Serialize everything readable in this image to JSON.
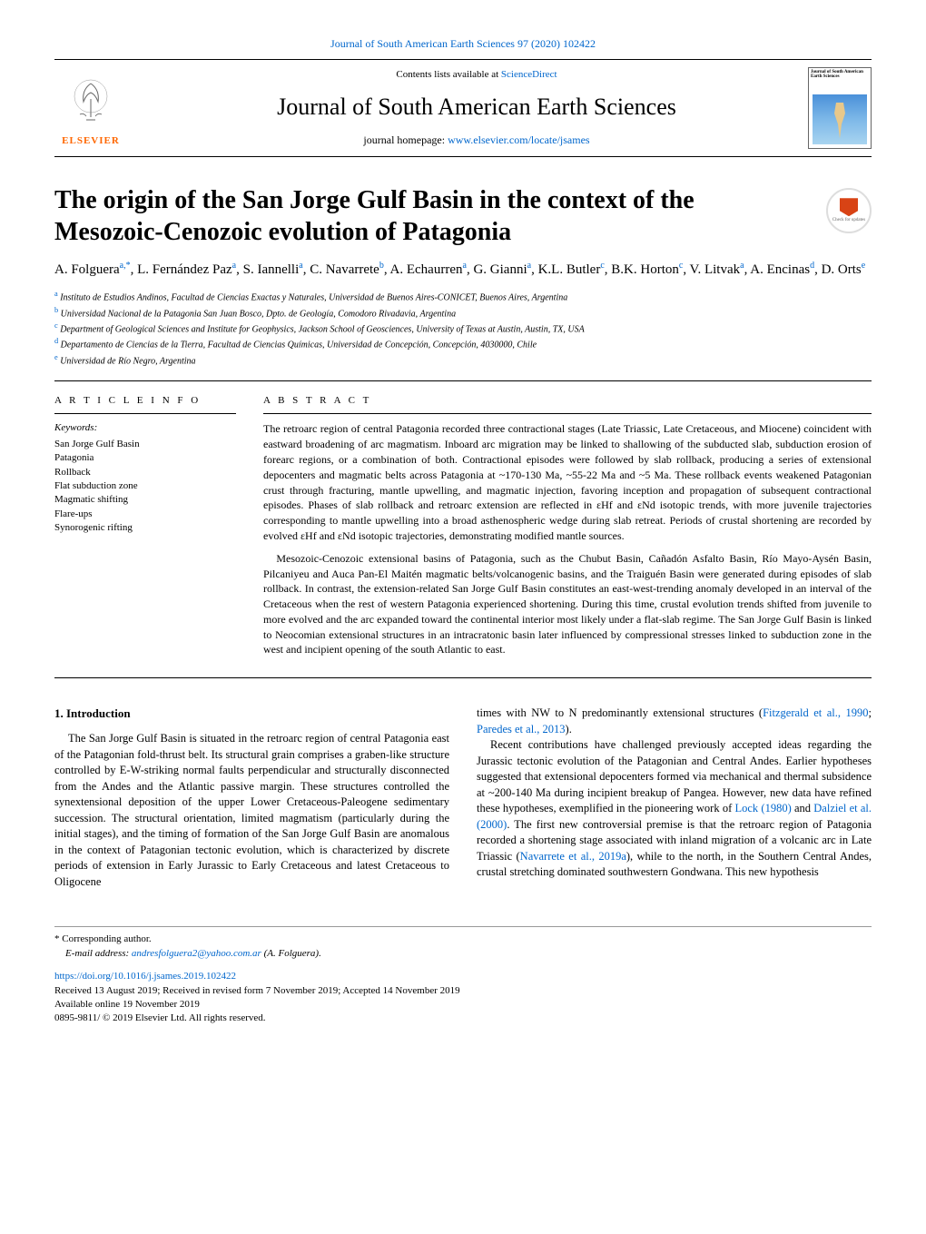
{
  "top_link": {
    "journal_citation": "Journal of South American Earth Sciences 97 (2020) 102422"
  },
  "header": {
    "contents_prefix": "Contents lists available at ",
    "contents_link": "ScienceDirect",
    "journal_name": "Journal of South American Earth Sciences",
    "homepage_prefix": "journal homepage: ",
    "homepage_url": "www.elsevier.com/locate/jsames",
    "elsevier_text": "ELSEVIER",
    "cover_title": "Journal of South American Earth Sciences"
  },
  "check_updates": {
    "label": "Check for updates"
  },
  "article": {
    "title": "The origin of the San Jorge Gulf Basin in the context of the Mesozoic-Cenozoic evolution of Patagonia",
    "authors_html": "A. Folguera<sup>a,*</sup>, L. Fernández Paz<sup>a</sup>, S. Iannelli<sup>a</sup>, C. Navarrete<sup>b</sup>, A. Echaurren<sup>a</sup>, G. Gianni<sup>a</sup>, K.L. Butler<sup>c</sup>, B.K. Horton<sup>c</sup>, V. Litvak<sup>a</sup>, A. Encinas<sup>d</sup>, D. Orts<sup>e</sup>",
    "affiliations": [
      {
        "sup": "a",
        "text": "Instituto de Estudios Andinos, Facultad de Ciencias Exactas y Naturales, Universidad de Buenos Aires-CONICET, Buenos Aires, Argentina"
      },
      {
        "sup": "b",
        "text": "Universidad Nacional de la Patagonia San Juan Bosco, Dpto. de Geología, Comodoro Rivadavia, Argentina"
      },
      {
        "sup": "c",
        "text": "Department of Geological Sciences and Institute for Geophysics, Jackson School of Geosciences, University of Texas at Austin, Austin, TX, USA"
      },
      {
        "sup": "d",
        "text": "Departamento de Ciencias de la Tierra, Facultad de Ciencias Químicas, Universidad de Concepción, Concepción, 4030000, Chile"
      },
      {
        "sup": "e",
        "text": "Universidad de Río Negro, Argentina"
      }
    ]
  },
  "article_info": {
    "heading": "A R T I C L E  I N F O",
    "keywords_label": "Keywords:",
    "keywords": [
      "San Jorge Gulf Basin",
      "Patagonia",
      "Rollback",
      "Flat subduction zone",
      "Magmatic shifting",
      "Flare-ups",
      "Synorogenic rifting"
    ]
  },
  "abstract": {
    "heading": "A B S T R A C T",
    "para1": "The retroarc region of central Patagonia recorded three contractional stages (Late Triassic, Late Cretaceous, and Miocene) coincident with eastward broadening of arc magmatism. Inboard arc migration may be linked to shallowing of the subducted slab, subduction erosion of forearc regions, or a combination of both. Contractional episodes were followed by slab rollback, producing a series of extensional depocenters and magmatic belts across Patagonia at ~170-130 Ma, ~55-22 Ma and ~5 Ma. These rollback events weakened Patagonian crust through fracturing, mantle upwelling, and magmatic injection, favoring inception and propagation of subsequent contractional episodes. Phases of slab rollback and retroarc extension are reflected in εHf and εNd isotopic trends, with more juvenile trajectories corresponding to mantle upwelling into a broad asthenospheric wedge during slab retreat. Periods of crustal shortening are recorded by evolved εHf and εNd isotopic trajectories, demonstrating modified mantle sources.",
    "para2": "Mesozoic-Cenozoic extensional basins of Patagonia, such as the Chubut Basin, Cañadón Asfalto Basin, Río Mayo-Aysén Basin, Pilcaniyeu and Auca Pan-El Maitén magmatic belts/volcanogenic basins, and the Traiguén Basin were generated during episodes of slab rollback. In contrast, the extension-related San Jorge Gulf Basin constitutes an east-west-trending anomaly developed in an interval of the Cretaceous when the rest of western Patagonia experienced shortening. During this time, crustal evolution trends shifted from juvenile to more evolved and the arc expanded toward the continental interior most likely under a flat-slab regime. The San Jorge Gulf Basin is linked to Neocomian extensional structures in an intracratonic basin later influenced by compressional stresses linked to subduction zone in the west and incipient opening of the south Atlantic to east."
  },
  "body": {
    "heading": "1. Introduction",
    "col1_p1": "The San Jorge Gulf Basin is situated in the retroarc region of central Patagonia east of the Patagonian fold-thrust belt. Its structural grain comprises a graben-like structure controlled by E-W-striking normal faults perpendicular and structurally disconnected from the Andes and the Atlantic passive margin. These structures controlled the synextensional deposition of the upper Lower Cretaceous-Paleogene sedimentary succession. The structural orientation, limited magmatism (particularly during the initial stages), and the timing of formation of the San Jorge Gulf Basin are anomalous in the context of Patagonian tectonic evolution, which is characterized by discrete periods of extension in Early Jurassic to Early Cretaceous and latest Cretaceous to Oligocene",
    "col2_p1_prefix": "times with NW to N predominantly extensional structures (",
    "col2_p1_cite1": "Fitzgerald et al., 1990",
    "col2_p1_mid": "; ",
    "col2_p1_cite2": "Paredes et al., 2013",
    "col2_p1_suffix": ").",
    "col2_p2_a": "Recent contributions have challenged previously accepted ideas regarding the Jurassic tectonic evolution of the Patagonian and Central Andes. Earlier hypotheses suggested that extensional depocenters formed via mechanical and thermal subsidence at ~200-140 Ma during incipient breakup of Pangea. However, new data have refined these hypotheses, exemplified in the pioneering work of ",
    "col2_p2_cite1": "Lock (1980)",
    "col2_p2_b": " and ",
    "col2_p2_cite2": "Dalziel et al. (2000)",
    "col2_p2_c": ". The first new controversial premise is that the retroarc region of Patagonia recorded a shortening stage associated with inland migration of a volcanic arc in Late Triassic (",
    "col2_p2_cite3": "Navarrete et al., 2019a",
    "col2_p2_d": "), while to the north, in the Southern Central Andes, crustal stretching dominated southwestern Gondwana. This new hypothesis"
  },
  "footer": {
    "corr_label": "* Corresponding author.",
    "email_label": "E-mail address: ",
    "email": "andresfolguera2@yahoo.com.ar",
    "email_suffix": " (A. Folguera).",
    "doi": "https://doi.org/10.1016/j.jsames.2019.102422",
    "received": "Received 13 August 2019; Received in revised form 7 November 2019; Accepted 14 November 2019",
    "available": "Available online 19 November 2019",
    "copyright": "0895-9811/ © 2019 Elsevier Ltd. All rights reserved."
  }
}
